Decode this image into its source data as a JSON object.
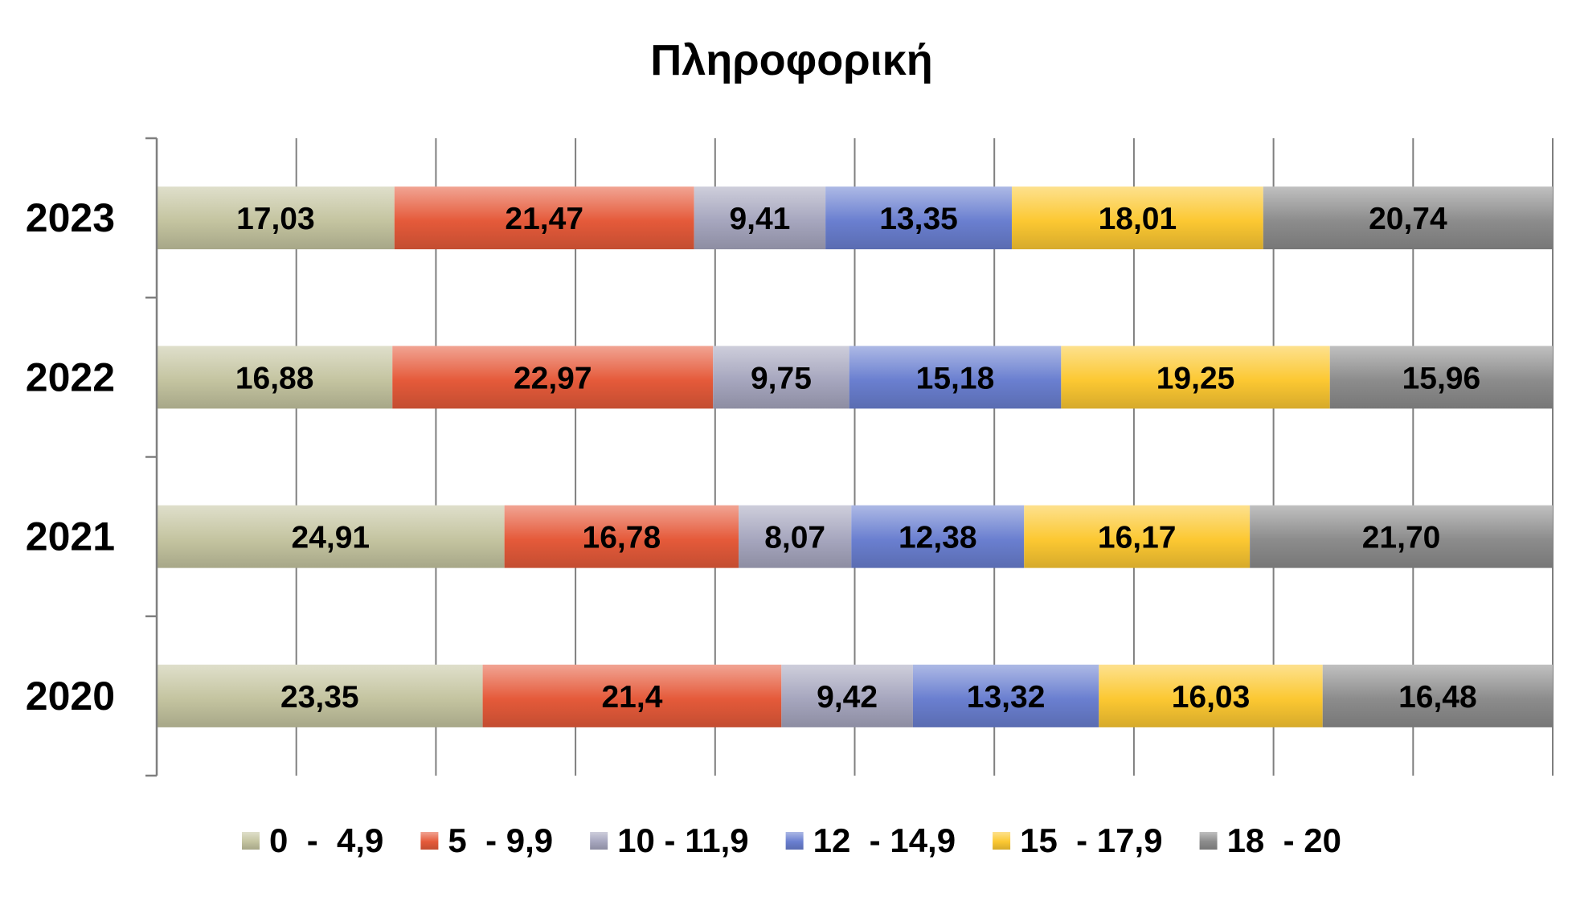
{
  "chart_data": {
    "type": "bar",
    "orientation": "horizontal",
    "stacked": "percent",
    "title": "Πληροφορική",
    "categories": [
      "2023",
      "2022",
      "2021",
      "2020"
    ],
    "series": [
      {
        "name": "0  -  4,9",
        "color": "#c4c4a0",
        "values": [
          17.03,
          16.88,
          24.91,
          23.35
        ],
        "labels": [
          "17,03",
          "16,88",
          "24,91",
          "23,35"
        ]
      },
      {
        "name": "5  - 9,9",
        "color": "#e55a3a",
        "values": [
          21.47,
          22.97,
          16.78,
          21.4
        ],
        "labels": [
          "21,47",
          "22,97",
          "16,78",
          "21,4"
        ]
      },
      {
        "name": "10 - 11,9",
        "color": "#a6a6be",
        "values": [
          9.41,
          9.75,
          8.07,
          9.42
        ],
        "labels": [
          "9,41",
          "9,75",
          "8,07",
          "9,42"
        ]
      },
      {
        "name": "12  - 14,9",
        "color": "#6a7fd0",
        "values": [
          13.35,
          15.18,
          12.38,
          13.32
        ],
        "labels": [
          "13,35",
          "15,18",
          "12,38",
          "13,32"
        ]
      },
      {
        "name": "15  - 17,9",
        "color": "#fcc832",
        "values": [
          18.01,
          19.25,
          16.17,
          16.03
        ],
        "labels": [
          "18,01",
          "19,25",
          "16,17",
          "16,03"
        ]
      },
      {
        "name": "18  - 20",
        "color": "#8c8c8c",
        "values": [
          20.74,
          15.96,
          21.7,
          16.48
        ],
        "labels": [
          "20,74",
          "15,96",
          "21,70",
          "16,48"
        ]
      }
    ],
    "xlim": [
      0,
      100
    ],
    "grid": true,
    "legend": "bottom"
  }
}
